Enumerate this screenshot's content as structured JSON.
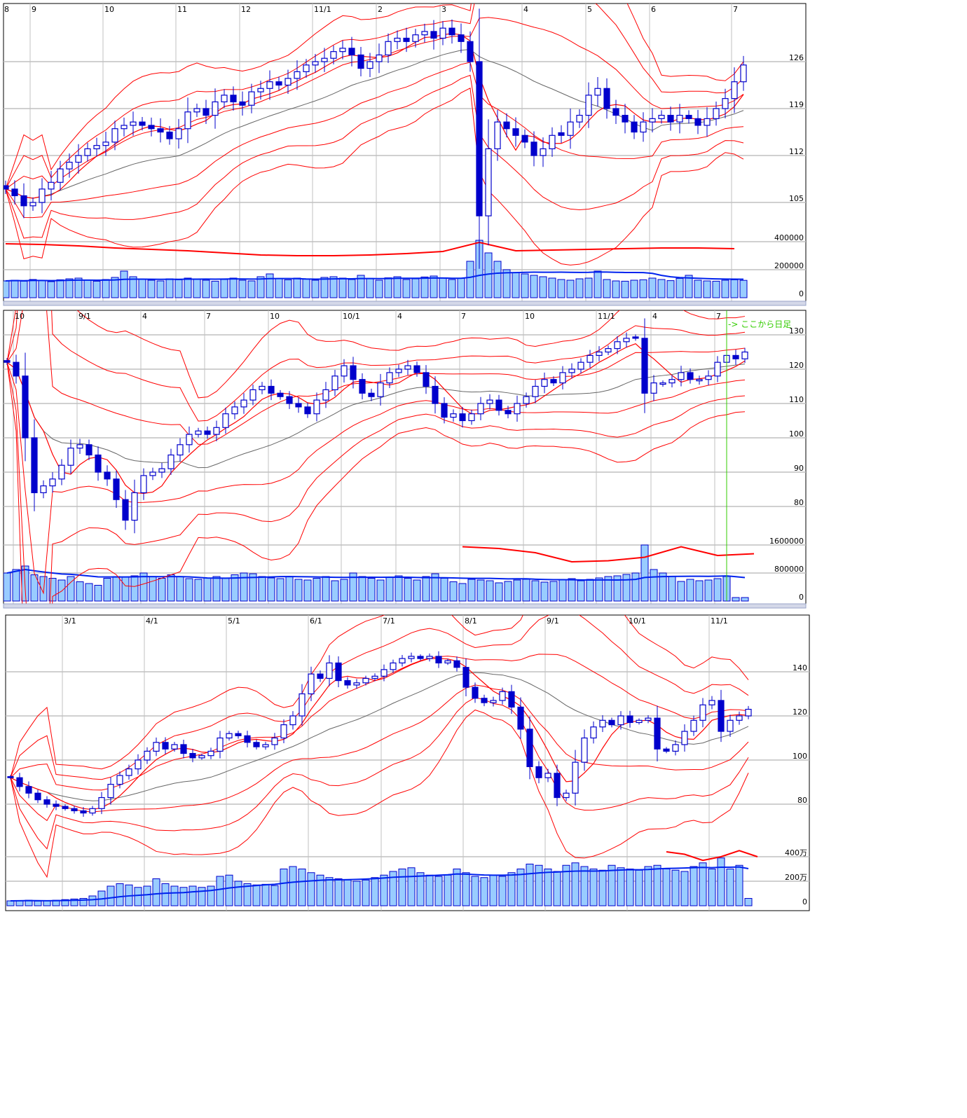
{
  "colors": {
    "candle": "#0000cc",
    "band": "#ff0000",
    "middle_ma": "#666666",
    "volume_fill": "#99ccff",
    "volume_edge": "#0000cc",
    "volume_ma": "#0022ee",
    "volume_ma_long": "#ff0000",
    "grid": "#c0c0c0",
    "daily_marker": "#33cc00"
  },
  "chart_data": [
    {
      "type": "candlestick",
      "indicators": [
        "bollinger bands ±1σ ±2σ ±3σ",
        "moving average",
        "volume",
        "volume moving average"
      ],
      "x_tick_labels": [
        "8",
        "9",
        "10",
        "11",
        "12",
        "11/1",
        "2",
        "3",
        "4",
        "5",
        "6",
        "7"
      ],
      "x_tick_bars": [
        0,
        3,
        11,
        19,
        26,
        34,
        41,
        48,
        57,
        64,
        71,
        80
      ],
      "y_ticks": [
        "126",
        "119",
        "112",
        "105"
      ],
      "volume_ticks": [
        "400000",
        "200000",
        "0"
      ],
      "grid": true,
      "close": [
        107,
        106,
        104.5,
        105,
        107,
        108,
        110,
        111,
        112,
        113,
        113.5,
        114,
        116,
        116.5,
        117,
        116.5,
        116,
        115.5,
        114.5,
        116,
        118.5,
        119,
        118,
        120,
        121,
        120,
        119.5,
        121.5,
        122,
        123,
        122.5,
        123.5,
        124.5,
        125.5,
        126,
        126.5,
        127.5,
        128,
        127,
        125,
        126,
        127,
        129,
        129.5,
        129,
        130,
        130.5,
        129.5,
        131,
        130,
        129,
        126,
        103,
        113,
        117,
        116,
        115,
        114,
        112,
        113,
        115,
        115,
        117,
        118,
        121,
        122,
        119,
        118,
        117,
        115.5,
        117,
        117.5,
        118,
        117,
        118,
        117.5,
        116.5,
        117.5,
        119,
        120.5,
        123,
        125.5
      ],
      "volume": [
        120000,
        125000,
        118000,
        130000,
        122000,
        115000,
        128000,
        135000,
        140000,
        125000,
        118000,
        130000,
        145000,
        190000,
        150000,
        130000,
        125000,
        120000,
        135000,
        128000,
        140000,
        132000,
        125000,
        118000,
        130000,
        140000,
        125000,
        120000,
        150000,
        170000,
        135000,
        128000,
        140000,
        132000,
        125000,
        145000,
        150000,
        140000,
        130000,
        160000,
        138000,
        125000,
        142000,
        150000,
        130000,
        135000,
        148000,
        155000,
        140000,
        130000,
        138000,
        260000,
        410000,
        320000,
        260000,
        200000,
        180000,
        170000,
        160000,
        150000,
        140000,
        130000,
        125000,
        135000,
        140000,
        190000,
        130000,
        120000,
        118000,
        125000,
        128000,
        140000,
        130000,
        122000,
        138000,
        160000,
        125000,
        120000,
        118000,
        125000,
        128000,
        124000
      ],
      "volume_ma_long": [
        385000,
        380000,
        370000,
        355000,
        345000,
        335000,
        320000,
        305000,
        300000,
        300000,
        305000,
        315000,
        330000,
        395000,
        335000,
        340000,
        345000,
        350000,
        355000,
        355000,
        350000
      ]
    },
    {
      "type": "candlestick",
      "indicators": [
        "bollinger bands ±1σ ±2σ ±3σ",
        "moving average",
        "volume",
        "volume moving average"
      ],
      "x_tick_labels": [
        "10",
        "9/1",
        "4",
        "7",
        "10",
        "10/1",
        "4",
        "7",
        "10",
        "11/1",
        "4",
        "7"
      ],
      "x_tick_bars": [
        1,
        8,
        15,
        22,
        29,
        37,
        43,
        50,
        57,
        65,
        71,
        78
      ],
      "y_ticks": [
        "130",
        "120",
        "110",
        "100",
        "90",
        "80"
      ],
      "volume_ticks": [
        "1600000",
        "800000",
        "0"
      ],
      "grid": true,
      "annotation": "-> ここから日足",
      "close": [
        122,
        118,
        100,
        84,
        86,
        88,
        92,
        97,
        98,
        95,
        90,
        88,
        82,
        76,
        84,
        89,
        90,
        91,
        95,
        98,
        101,
        102,
        101,
        103,
        107,
        109,
        111,
        114,
        115,
        113,
        112,
        110,
        109,
        107,
        111,
        114,
        118,
        121,
        117,
        113,
        112,
        116,
        119,
        120,
        121,
        119,
        115,
        110,
        106,
        107,
        105,
        107,
        110,
        111,
        108,
        107,
        110,
        112,
        115,
        117,
        116,
        119,
        120,
        122,
        124,
        125,
        126,
        128,
        129,
        129,
        113,
        116,
        116,
        117,
        119,
        117,
        117,
        118,
        122,
        124,
        123,
        125
      ],
      "volume": [
        800000,
        900000,
        1000000,
        750000,
        700000,
        650000,
        600000,
        700000,
        550000,
        500000,
        450000,
        650000,
        700000,
        680000,
        720000,
        800000,
        700000,
        650000,
        750000,
        700000,
        640000,
        620000,
        660000,
        700000,
        650000,
        750000,
        800000,
        780000,
        700000,
        660000,
        640000,
        700000,
        620000,
        600000,
        650000,
        700000,
        580000,
        620000,
        800000,
        700000,
        650000,
        600000,
        680000,
        720000,
        650000,
        600000,
        700000,
        780000,
        650000,
        550000,
        500000,
        620000,
        600000,
        580000,
        520000,
        560000,
        600000,
        620000,
        580000,
        540000,
        560000,
        600000,
        640000,
        580000,
        620000,
        660000,
        700000,
        720000,
        760000,
        800000,
        1600000,
        900000,
        800000,
        700000,
        560000,
        620000,
        580000,
        600000,
        640000,
        700000,
        100000,
        100000
      ],
      "volume_ma_long": [
        1550000,
        1500000,
        1380000,
        1120000,
        1150000,
        1250000,
        1550000,
        1300000,
        1350000
      ]
    },
    {
      "type": "candlestick",
      "indicators": [
        "bollinger bands ±1σ ±2σ ±3σ",
        "moving average",
        "volume",
        "volume moving average"
      ],
      "x_tick_labels": [
        "3/1",
        "4/1",
        "5/1",
        "6/1",
        "7/1",
        "8/1",
        "9/1",
        "10/1",
        "11/1"
      ],
      "x_tick_bars": [
        6,
        15,
        24,
        33,
        41,
        50,
        59,
        68,
        77
      ],
      "y_ticks": [
        "140",
        "120",
        "100",
        "80"
      ],
      "volume_ticks": [
        "400万",
        "200万",
        "0"
      ],
      "volume_unit": "万",
      "grid": true,
      "close": [
        92,
        88,
        85,
        82,
        80,
        79,
        78,
        77,
        76,
        78,
        83,
        89,
        93,
        96,
        100,
        104,
        108,
        105,
        107,
        103,
        101,
        102,
        104,
        110,
        112,
        111,
        108,
        106,
        107,
        110,
        116,
        120,
        130,
        139,
        137,
        144,
        136,
        134,
        135,
        137,
        138,
        141,
        144,
        146,
        147,
        146,
        147,
        144,
        145,
        142,
        133,
        128,
        126,
        127,
        131,
        124,
        114,
        97,
        92,
        94,
        83,
        85,
        99,
        110,
        115,
        118,
        116,
        120,
        117,
        118,
        119,
        105,
        104,
        107,
        113,
        118,
        125,
        127,
        113,
        118,
        120,
        123
      ],
      "volume": [
        40,
        42,
        45,
        38,
        40,
        45,
        50,
        55,
        60,
        80,
        120,
        160,
        180,
        170,
        150,
        160,
        220,
        180,
        160,
        150,
        160,
        150,
        160,
        240,
        250,
        200,
        180,
        170,
        175,
        165,
        300,
        320,
        300,
        270,
        250,
        230,
        220,
        210,
        200,
        210,
        230,
        250,
        280,
        300,
        310,
        270,
        250,
        240,
        250,
        300,
        270,
        240,
        230,
        250,
        240,
        270,
        300,
        340,
        330,
        300,
        280,
        330,
        350,
        320,
        300,
        290,
        330,
        310,
        300,
        290,
        320,
        330,
        300,
        290,
        280,
        320,
        350,
        300,
        390,
        300,
        330,
        60
      ],
      "volume_ma_long": [
        440,
        420,
        370,
        400,
        450,
        400
      ]
    }
  ]
}
